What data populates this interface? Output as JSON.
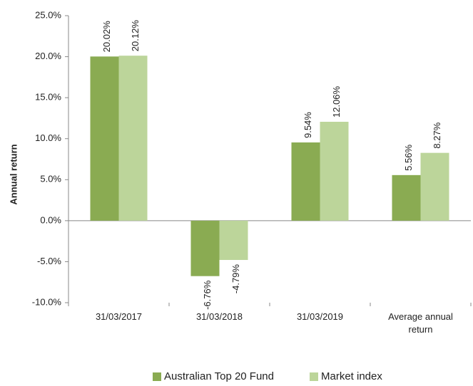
{
  "chart_data": {
    "type": "bar",
    "y_label": "Annual return",
    "categories": [
      "31/03/2017",
      "31/03/2018",
      "31/03/2019",
      "Average annual return"
    ],
    "series": [
      {
        "name": "Australian Top 20 Fund",
        "color": "#8aab52",
        "values": [
          20.02,
          -6.76,
          9.54,
          5.56
        ],
        "value_labels": [
          "20.02%",
          "-6.76%",
          "9.54%",
          "5.56%"
        ]
      },
      {
        "name": "Market index",
        "color": "#bcd59a",
        "values": [
          20.12,
          -4.79,
          12.06,
          8.27
        ],
        "value_labels": [
          "20.12%",
          "-4.79%",
          "12.06%",
          "8.27%"
        ]
      }
    ],
    "ylim": [
      -10,
      25
    ],
    "yticks": [
      {
        "value": -10,
        "label": "-10.0%"
      },
      {
        "value": -5,
        "label": "-5.0%"
      },
      {
        "value": 0,
        "label": "0.0%"
      },
      {
        "value": 5,
        "label": "5.0%"
      },
      {
        "value": 10,
        "label": "10.0%"
      },
      {
        "value": 15,
        "label": "15.0%"
      },
      {
        "value": 20,
        "label": "20.0%"
      },
      {
        "value": 25,
        "label": "25.0%"
      }
    ],
    "legend": "bottom"
  }
}
